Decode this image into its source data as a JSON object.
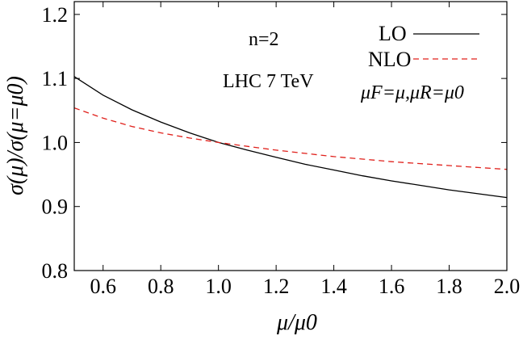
{
  "chart_data": {
    "type": "line",
    "xlabel": "μ/μ0",
    "ylabel": "σ(μ)/σ(μ=μ0)",
    "xlim": [
      0.5,
      2.0
    ],
    "ylim": [
      0.8,
      1.22
    ],
    "xticks": [
      0.6,
      0.8,
      1.0,
      1.2,
      1.4,
      1.6,
      1.8,
      2.0
    ],
    "xtick_labels": [
      "0.6",
      "0.8",
      "1.0",
      "1.2",
      "1.4",
      "1.6",
      "1.8",
      "2.0"
    ],
    "yticks": [
      0.8,
      0.9,
      1.0,
      1.1,
      1.2
    ],
    "ytick_labels": [
      "0.8",
      "0.9",
      "1.0",
      "1.1",
      "1.2"
    ],
    "annotations": [
      "n=2",
      "LHC 7 TeV",
      "μF=μ,μR=μ0"
    ],
    "legend_position": "top-right",
    "grid": false,
    "series": [
      {
        "name": "LO",
        "color": "#000000",
        "dash": "solid",
        "x": [
          0.5,
          0.6,
          0.7,
          0.8,
          0.9,
          1.0,
          1.1,
          1.2,
          1.3,
          1.4,
          1.5,
          1.6,
          1.7,
          1.8,
          1.9,
          2.0
        ],
        "y": [
          1.103,
          1.074,
          1.051,
          1.032,
          1.015,
          1.0,
          0.988,
          0.977,
          0.966,
          0.957,
          0.948,
          0.94,
          0.933,
          0.926,
          0.92,
          0.914
        ]
      },
      {
        "name": "NLO",
        "color": "#e0201b",
        "dash": "dashed",
        "x": [
          0.5,
          0.6,
          0.7,
          0.8,
          0.9,
          1.0,
          1.1,
          1.2,
          1.3,
          1.4,
          1.5,
          1.6,
          1.7,
          1.8,
          1.9,
          2.0
        ],
        "y": [
          1.054,
          1.038,
          1.025,
          1.015,
          1.007,
          1.0,
          0.994,
          0.988,
          0.983,
          0.978,
          0.974,
          0.97,
          0.967,
          0.964,
          0.961,
          0.958
        ]
      }
    ]
  }
}
